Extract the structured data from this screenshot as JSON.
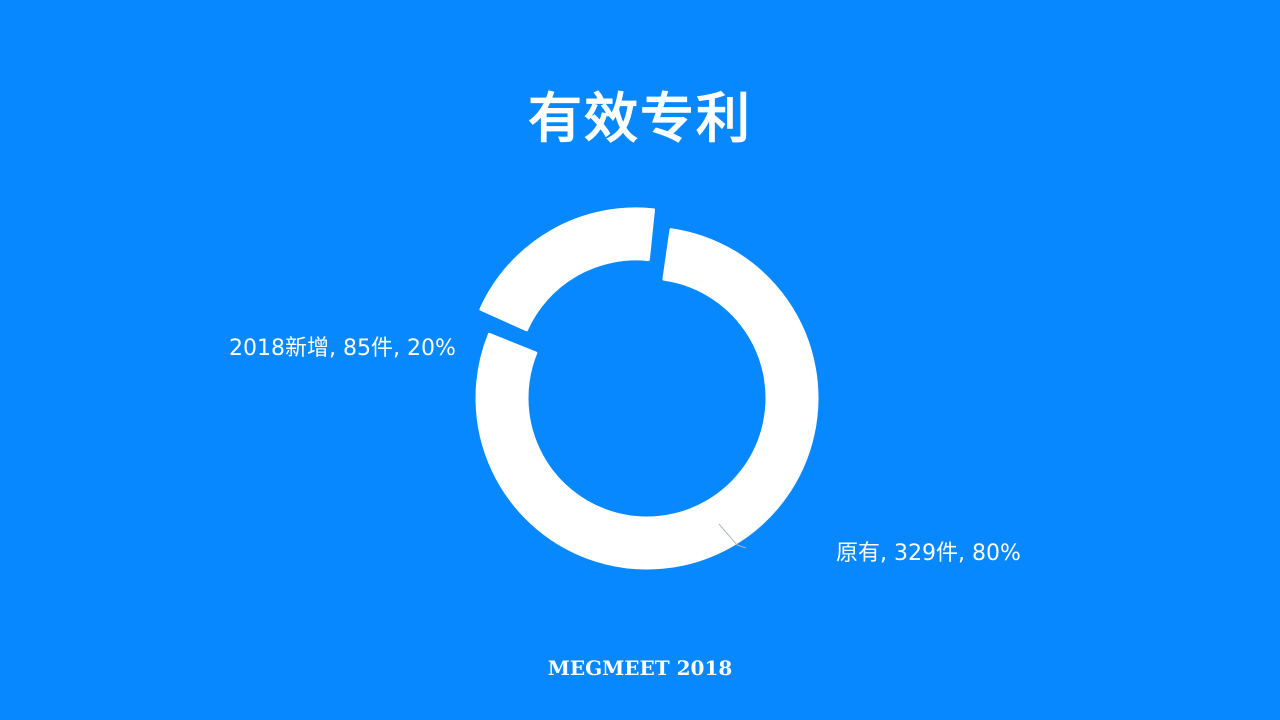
{
  "title": "有效专利",
  "footer": "MEGMEET 2018",
  "colors": {
    "background": "#0788FF",
    "slice": "#FFFFFF",
    "leader": "#B0B8C4"
  },
  "chart_data": {
    "type": "pie",
    "subtype": "donut",
    "title": "有效专利",
    "slices": [
      {
        "name": "原有",
        "value": 329,
        "percent": 80,
        "label": "原有, 329件, 80%",
        "exploded": false
      },
      {
        "name": "2018新增",
        "value": 85,
        "percent": 20,
        "label": "2018新增, 85件, 20%",
        "exploded": true
      }
    ],
    "legend": "none"
  }
}
